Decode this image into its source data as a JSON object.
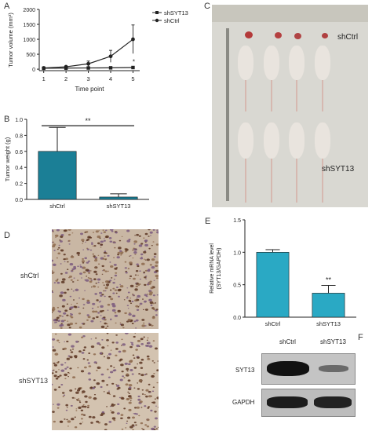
{
  "panels": {
    "A": "A",
    "B": "B",
    "C": "C",
    "D": "D",
    "E": "E",
    "F": "F"
  },
  "chart_data": [
    {
      "id": "A",
      "type": "line",
      "xlabel": "Time point",
      "ylabel": "Tumor volume (mm³)",
      "x": [
        1,
        2,
        3,
        4,
        5
      ],
      "xlim": [
        0.8,
        5.3
      ],
      "ylim": [
        -50,
        2000
      ],
      "yticks": [
        0,
        500,
        1000,
        1500,
        2000
      ],
      "series": [
        {
          "name": "shSYT13",
          "marker": "square",
          "values": [
            30,
            35,
            40,
            45,
            55
          ],
          "err": [
            5,
            5,
            8,
            10,
            15
          ]
        },
        {
          "name": "shCtrl",
          "marker": "circle",
          "values": [
            40,
            80,
            180,
            430,
            1000
          ],
          "err": [
            10,
            30,
            90,
            200,
            480
          ]
        }
      ],
      "annotations": [
        "*"
      ]
    },
    {
      "id": "B",
      "type": "bar",
      "ylabel": "Tumor weight (g)",
      "categories": [
        "shCtrl",
        "shSYT13"
      ],
      "values": [
        0.6,
        0.03
      ],
      "err": [
        0.3,
        0.04
      ],
      "ylim": [
        0,
        1.0
      ],
      "yticks": [
        0.0,
        0.2,
        0.4,
        0.6,
        0.8,
        1.0
      ],
      "bar_color": "#1b7f96",
      "annotations": [
        "**"
      ]
    },
    {
      "id": "E",
      "type": "bar",
      "ylabel": "Relative mRNA level (SYT13/GAPDH)",
      "ylabel_lines": [
        "Relative mRNA level",
        "(SYT13/GAPDH)"
      ],
      "categories": [
        "shCtrl",
        "shSYT13"
      ],
      "values": [
        1.0,
        0.37
      ],
      "err": [
        0.04,
        0.12
      ],
      "ylim": [
        0,
        1.5
      ],
      "yticks": [
        0.0,
        0.5,
        1.0,
        1.5
      ],
      "bar_color": "#2aa9c4",
      "annotations": [
        "**"
      ]
    }
  ],
  "photo_c": {
    "top_label": "shCtrl",
    "bottom_label": "shSYT13"
  },
  "photo_d": {
    "top_label": "shCtrl",
    "bottom_label": "shSYT13"
  },
  "blot_f": {
    "col1": "shCtrl",
    "col2": "shSYT13",
    "row1": "SYT13",
    "row2": "GAPDH"
  }
}
